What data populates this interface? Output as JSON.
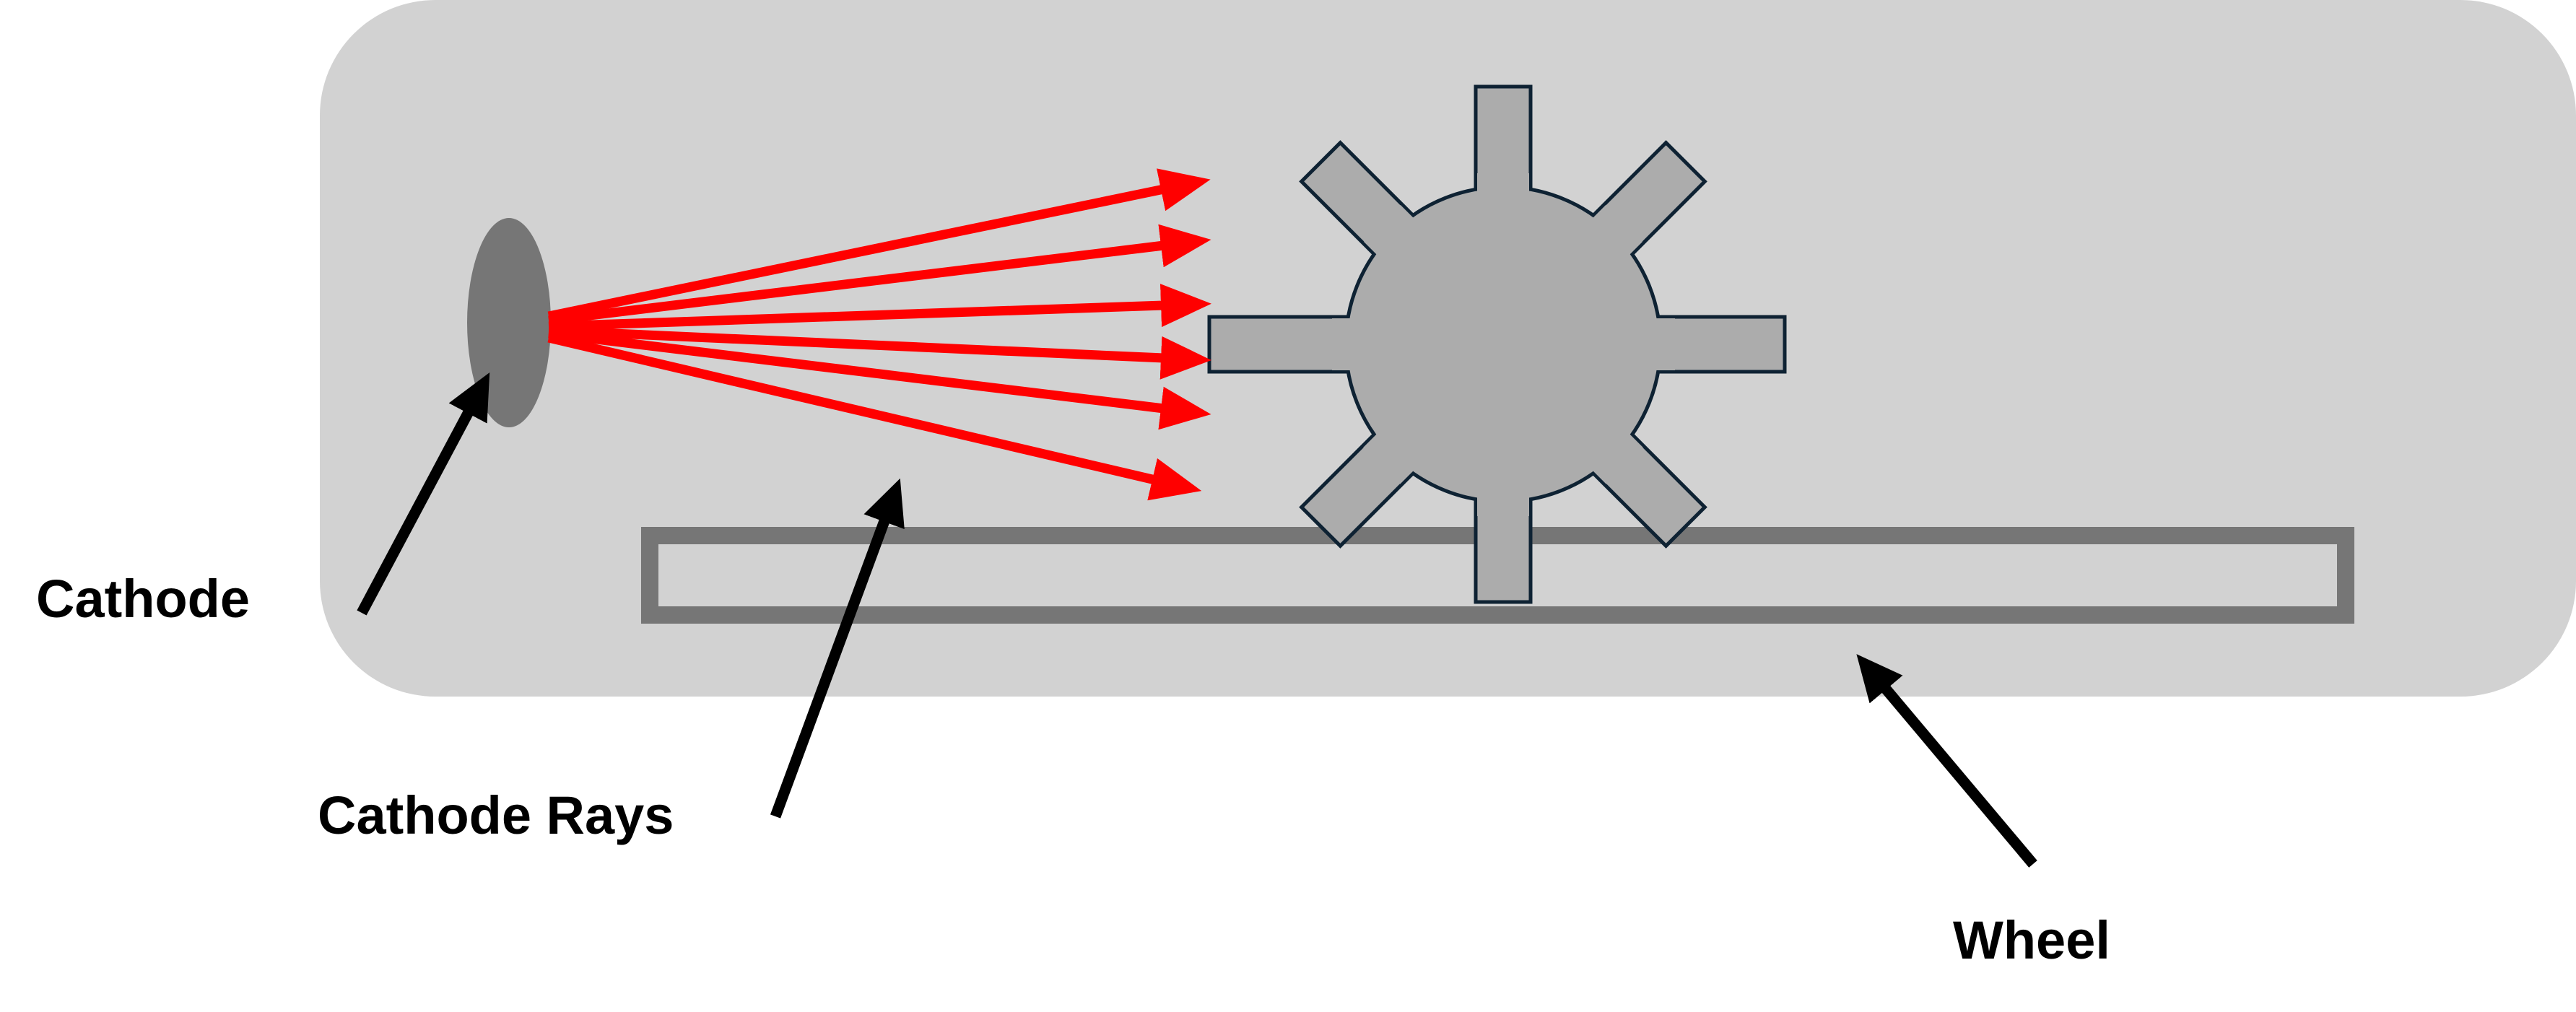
{
  "labels": {
    "cathode": "Cathode",
    "cathode_rays": "Cathode Rays",
    "wheel": "Wheel"
  },
  "colors": {
    "tube": "#d2d2d2",
    "cathode": "#767676",
    "rays": "#ff0000",
    "wheel_fill": "#acacac",
    "wheel_stroke": "#0e2233",
    "rail": "#767676",
    "pointer_arrows": "#000000",
    "text": "#000000",
    "background": "#ffffff"
  },
  "icons": {
    "ray_arrowhead": "triangle",
    "pointer_arrowhead": "triangle"
  }
}
